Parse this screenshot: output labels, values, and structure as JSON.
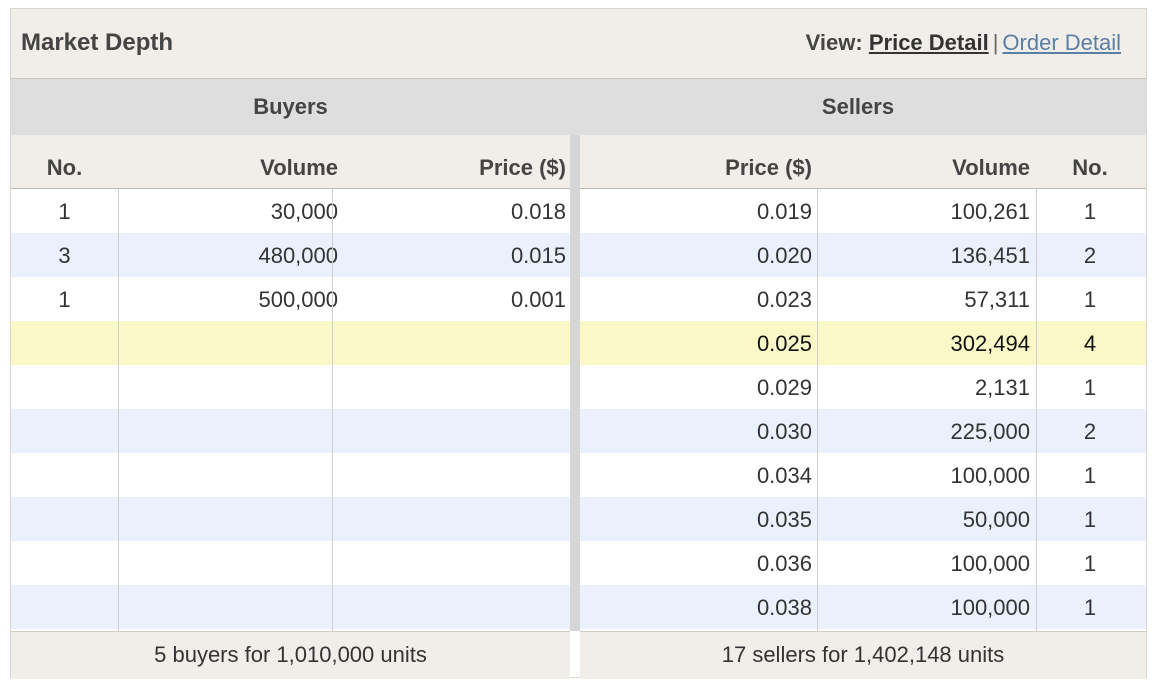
{
  "header": {
    "title": "Market Depth",
    "view_label": "View:",
    "price_detail": "Price Detail",
    "separator": "|",
    "order_detail": "Order Detail"
  },
  "buyers": {
    "heading": "Buyers",
    "columns": {
      "no": "No.",
      "volume": "Volume",
      "price": "Price ($)"
    },
    "rows": [
      {
        "no": "1",
        "volume": "30,000",
        "price": "0.018"
      },
      {
        "no": "3",
        "volume": "480,000",
        "price": "0.015"
      },
      {
        "no": "1",
        "volume": "500,000",
        "price": "0.001"
      },
      {
        "no": "",
        "volume": "",
        "price": ""
      },
      {
        "no": "",
        "volume": "",
        "price": ""
      },
      {
        "no": "",
        "volume": "",
        "price": ""
      },
      {
        "no": "",
        "volume": "",
        "price": ""
      },
      {
        "no": "",
        "volume": "",
        "price": ""
      },
      {
        "no": "",
        "volume": "",
        "price": ""
      },
      {
        "no": "",
        "volume": "",
        "price": ""
      }
    ],
    "summary": "5 buyers for 1,010,000 units"
  },
  "sellers": {
    "heading": "Sellers",
    "columns": {
      "price": "Price ($)",
      "volume": "Volume",
      "no": "No."
    },
    "rows": [
      {
        "price": "0.019",
        "volume": "100,261",
        "no": "1"
      },
      {
        "price": "0.020",
        "volume": "136,451",
        "no": "2"
      },
      {
        "price": "0.023",
        "volume": "57,311",
        "no": "1"
      },
      {
        "price": "0.025",
        "volume": "302,494",
        "no": "4"
      },
      {
        "price": "0.029",
        "volume": "2,131",
        "no": "1"
      },
      {
        "price": "0.030",
        "volume": "225,000",
        "no": "2"
      },
      {
        "price": "0.034",
        "volume": "100,000",
        "no": "1"
      },
      {
        "price": "0.035",
        "volume": "50,000",
        "no": "1"
      },
      {
        "price": "0.036",
        "volume": "100,000",
        "no": "1"
      },
      {
        "price": "0.038",
        "volume": "100,000",
        "no": "1"
      }
    ],
    "summary": "17 sellers for 1,402,148 units"
  },
  "colors": {
    "highlight_row": "#fbf8c8",
    "alt_row": "#eaf1fd",
    "link": "#5a7fa6"
  },
  "highlighted_row_index": 3
}
